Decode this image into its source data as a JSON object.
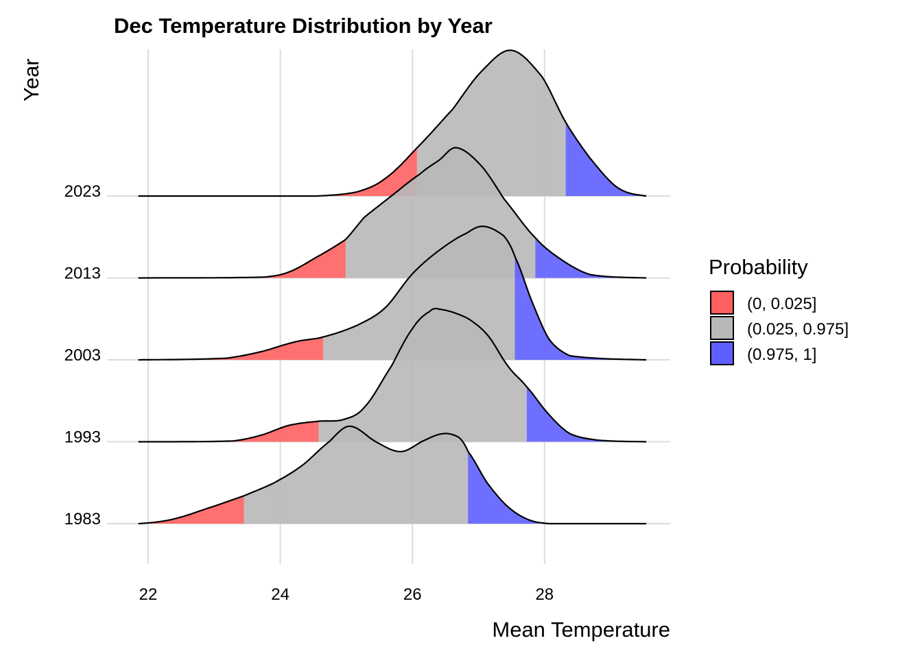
{
  "chart_data": {
    "type": "ridgeline-density",
    "title": "Dec Temperature Distribution by Year",
    "xlabel": "Mean Temperature",
    "ylabel": "Year",
    "xlim": [
      21.6,
      29.8
    ],
    "x_ticks": [
      22,
      24,
      26,
      28
    ],
    "x_tick_labels": [
      "22",
      "24",
      "26",
      "28"
    ],
    "grid": true,
    "legend": {
      "title": "Probability",
      "position": "right",
      "entries": [
        {
          "label": "(0, 0.025]",
          "color": "#FF6060"
        },
        {
          "label": "(0.025, 0.975]",
          "color": "#B8B8B8"
        },
        {
          "label": "(0.975, 1]",
          "color": "#5F5FFF"
        }
      ]
    },
    "density_units": "ridge height relative to row spacing",
    "series": [
      {
        "name": "1983",
        "quantile_low": 23.45,
        "quantile_high": 26.84,
        "x": [
          21.85,
          22.35,
          22.87,
          23.45,
          23.91,
          24.33,
          24.74,
          25.05,
          25.47,
          25.83,
          26.19,
          26.48,
          26.71,
          26.84,
          27.13,
          27.44,
          27.75,
          28.07,
          29.54
        ],
        "y": [
          0.0,
          0.05,
          0.18,
          0.34,
          0.5,
          0.71,
          1.0,
          1.19,
          0.99,
          0.88,
          1.02,
          1.1,
          1.05,
          0.88,
          0.5,
          0.21,
          0.05,
          0.0,
          0.0
        ]
      },
      {
        "name": "1993",
        "quantile_low": 24.58,
        "quantile_high": 27.73,
        "x": [
          21.85,
          23.29,
          23.71,
          24.13,
          24.58,
          24.95,
          25.27,
          25.68,
          26.0,
          26.26,
          26.4,
          26.83,
          27.14,
          27.45,
          27.73,
          28.07,
          28.38,
          28.8,
          29.54
        ],
        "y": [
          0.0,
          0.01,
          0.08,
          0.2,
          0.25,
          0.27,
          0.42,
          0.92,
          1.38,
          1.59,
          1.62,
          1.51,
          1.3,
          0.92,
          0.67,
          0.33,
          0.1,
          0.02,
          0.0
        ]
      },
      {
        "name": "2003",
        "quantile_low": 24.65,
        "quantile_high": 27.55,
        "x": [
          21.85,
          23.18,
          23.71,
          24.23,
          24.65,
          25.16,
          25.58,
          26.0,
          26.41,
          26.83,
          27.08,
          27.39,
          27.55,
          27.81,
          28.07,
          28.38,
          29.54
        ],
        "y": [
          0.0,
          0.02,
          0.1,
          0.22,
          0.28,
          0.42,
          0.63,
          1.05,
          1.34,
          1.55,
          1.63,
          1.51,
          1.26,
          0.71,
          0.25,
          0.05,
          0.0
        ]
      },
      {
        "name": "2013",
        "quantile_low": 24.99,
        "quantile_high": 27.86,
        "x": [
          21.85,
          23.76,
          24.12,
          24.54,
          24.99,
          25.27,
          25.68,
          26.1,
          26.41,
          26.66,
          27.03,
          27.39,
          27.86,
          28.28,
          28.69,
          29.54
        ],
        "y": [
          0.0,
          0.01,
          0.07,
          0.25,
          0.47,
          0.74,
          1.0,
          1.26,
          1.44,
          1.59,
          1.38,
          0.96,
          0.49,
          0.21,
          0.04,
          0.0
        ]
      },
      {
        "name": "2023",
        "quantile_low": 26.07,
        "quantile_high": 28.32,
        "x": [
          21.85,
          24.54,
          25.16,
          25.58,
          26.07,
          26.61,
          27.03,
          27.49,
          27.96,
          28.32,
          28.69,
          29.11,
          29.54
        ],
        "y": [
          0.0,
          0.0,
          0.05,
          0.21,
          0.59,
          1.06,
          1.51,
          1.78,
          1.46,
          0.9,
          0.46,
          0.1,
          0.0
        ]
      }
    ]
  }
}
